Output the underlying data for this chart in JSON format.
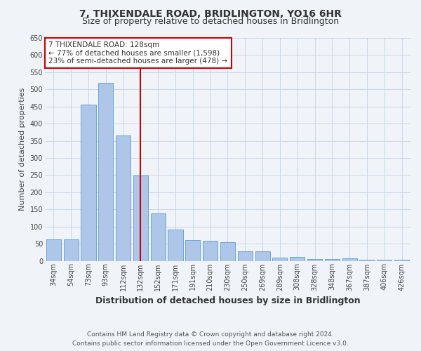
{
  "title": "7, THIXENDALE ROAD, BRIDLINGTON, YO16 6HR",
  "subtitle": "Size of property relative to detached houses in Bridlington",
  "xlabel": "Distribution of detached houses by size in Bridlington",
  "ylabel": "Number of detached properties",
  "categories": [
    "34sqm",
    "54sqm",
    "73sqm",
    "93sqm",
    "112sqm",
    "132sqm",
    "152sqm",
    "171sqm",
    "191sqm",
    "210sqm",
    "230sqm",
    "250sqm",
    "269sqm",
    "289sqm",
    "308sqm",
    "328sqm",
    "348sqm",
    "367sqm",
    "387sqm",
    "406sqm",
    "426sqm"
  ],
  "values": [
    62,
    63,
    455,
    520,
    365,
    248,
    138,
    92,
    60,
    58,
    54,
    27,
    27,
    10,
    11,
    5,
    5,
    8,
    4,
    4,
    4
  ],
  "bar_color": "#aec6e8",
  "bar_edge_color": "#5b9bd5",
  "vline_index": 5,
  "annotation_text": "7 THIXENDALE ROAD: 128sqm\n← 77% of detached houses are smaller (1,598)\n23% of semi-detached houses are larger (478) →",
  "annotation_box_color": "#ffffff",
  "annotation_box_edge": "#cc0000",
  "vline_color": "#cc0000",
  "footer_line1": "Contains HM Land Registry data © Crown copyright and database right 2024.",
  "footer_line2": "Contains public sector information licensed under the Open Government Licence v3.0.",
  "ylim": [
    0,
    650
  ],
  "yticks": [
    0,
    50,
    100,
    150,
    200,
    250,
    300,
    350,
    400,
    450,
    500,
    550,
    600,
    650
  ],
  "grid_color": "#c8d8e8",
  "bg_color": "#f0f4f8",
  "title_fontsize": 10,
  "subtitle_fontsize": 9,
  "xlabel_fontsize": 9,
  "ylabel_fontsize": 8,
  "tick_fontsize": 7,
  "annotation_fontsize": 7.5,
  "footer_fontsize": 6.5
}
